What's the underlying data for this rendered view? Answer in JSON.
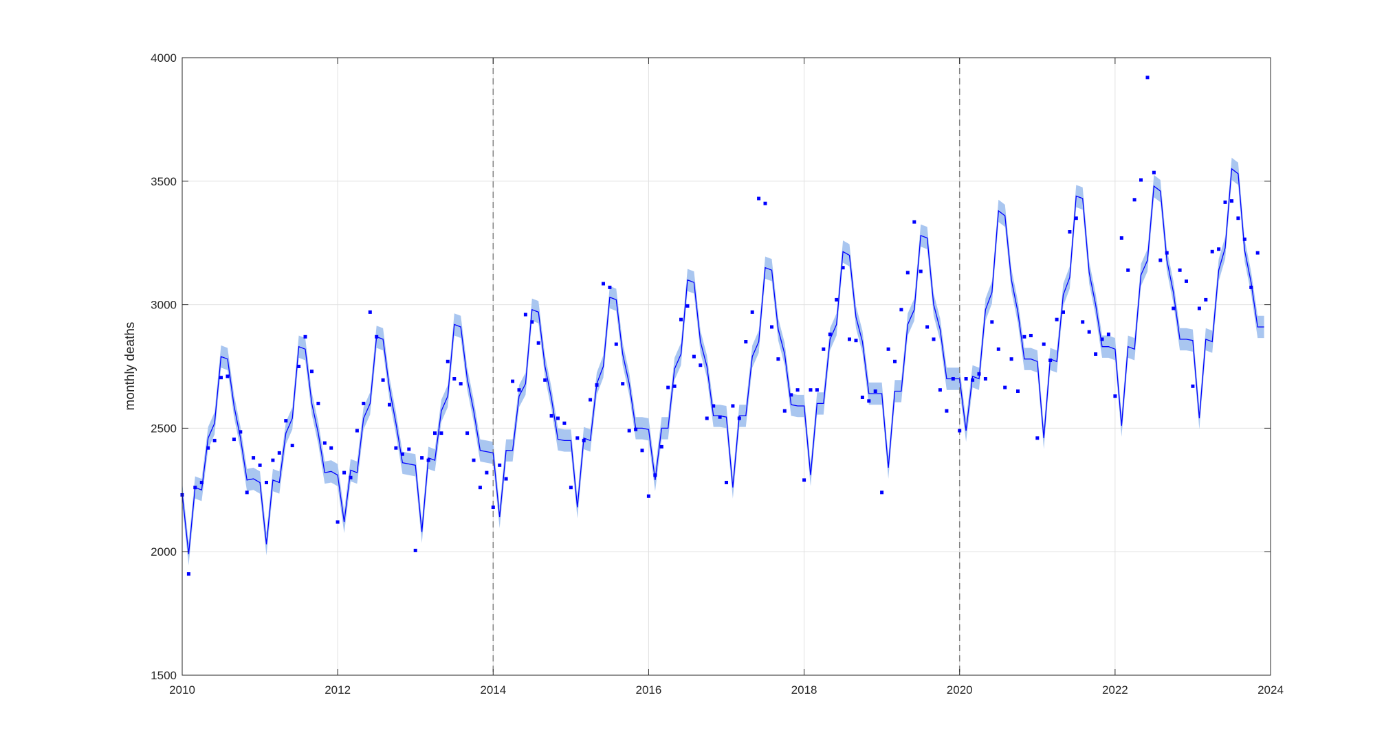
{
  "chart_data": {
    "type": "line",
    "title": "",
    "xlabel": "",
    "ylabel": "monthly deaths",
    "xlim": [
      2010,
      2024
    ],
    "ylim": [
      1500,
      4000
    ],
    "xticks": [
      2010,
      2012,
      2014,
      2016,
      2018,
      2020,
      2022,
      2024
    ],
    "xtick_labels": [
      "2010",
      "2012",
      "2014",
      "2016",
      "2018",
      "2020",
      "2022",
      "2024"
    ],
    "yticks": [
      1500,
      2000,
      2500,
      3000,
      3500,
      4000
    ],
    "ytick_labels": [
      "1500",
      "2000",
      "2500",
      "3000",
      "3500",
      "4000"
    ],
    "grid": true,
    "vertical_reference_lines": [
      2014,
      2020
    ],
    "colors": {
      "line": "#0000ff",
      "band": "#a9c6f0",
      "points": "#0000ff",
      "reference": "#808080",
      "grid": "#e0e0e0",
      "axis": "#262626"
    },
    "series": [
      {
        "kind": "observed-points",
        "monthly_from": 2010.0,
        "values": [
          2230,
          1910,
          2260,
          2280,
          2420,
          2450,
          2705,
          2710,
          2455,
          2485,
          2240,
          2380,
          2350,
          2280,
          2370,
          2400,
          2530,
          2430,
          2750,
          2870,
          2730,
          2600,
          2440,
          2420,
          2120,
          2320,
          2300,
          2490,
          2600,
          2970,
          2870,
          2695,
          2595,
          2420,
          2395,
          2415,
          2005,
          2380,
          2370,
          2480,
          2480,
          2770,
          2700,
          2680,
          2480,
          2370,
          2260,
          2320,
          2180,
          2350,
          2295,
          2690,
          2655,
          2960,
          2930,
          2845,
          2695,
          2550,
          2540,
          2520,
          2260,
          2460,
          2450,
          2615,
          2675,
          3085,
          3070,
          2840,
          2680,
          2490,
          2495,
          2410,
          2225,
          2310,
          2425,
          2665,
          2670,
          2940,
          2995,
          2790,
          2755,
          2540,
          2590,
          2545,
          2280,
          2590,
          2540,
          2850,
          2970,
          3430,
          3410,
          2910,
          2780,
          2570,
          2635,
          2655,
          2290,
          2655,
          2655,
          2820,
          2880,
          3020,
          3150,
          2860,
          2855,
          2625,
          2610,
          2650,
          2240,
          2820,
          2770,
          2980,
          3130,
          3335,
          3135,
          2910,
          2860,
          2655,
          2570,
          2700,
          2490,
          2700,
          2695,
          2720,
          2700,
          2930,
          2820,
          2665,
          2780,
          2650,
          2870,
          2875,
          2460,
          2840,
          2775,
          2940,
          2970,
          3295,
          3350,
          2930,
          2890,
          2800,
          2860,
          2880,
          2630,
          3270,
          3140,
          3425,
          3505,
          3920,
          3535,
          3180,
          3210,
          2985,
          3140,
          3095,
          2670,
          2985,
          3020,
          3215,
          3225,
          3415,
          3420,
          3350,
          3265,
          3070,
          3210
        ]
      },
      {
        "kind": "fitted-line",
        "monthly_from": 2010.0,
        "values": [
          2235,
          1990,
          2260,
          2250,
          2460,
          2520,
          2790,
          2780,
          2590,
          2460,
          2290,
          2295,
          2280,
          2030,
          2290,
          2280,
          2480,
          2540,
          2830,
          2820,
          2600,
          2480,
          2320,
          2325,
          2310,
          2120,
          2330,
          2320,
          2540,
          2600,
          2870,
          2860,
          2660,
          2520,
          2360,
          2355,
          2350,
          2080,
          2380,
          2370,
          2570,
          2630,
          2920,
          2910,
          2700,
          2570,
          2410,
          2405,
          2400,
          2140,
          2410,
          2410,
          2630,
          2680,
          2980,
          2970,
          2750,
          2620,
          2455,
          2450,
          2450,
          2180,
          2460,
          2450,
          2680,
          2750,
          3030,
          3020,
          2800,
          2680,
          2500,
          2500,
          2495,
          2290,
          2500,
          2500,
          2740,
          2800,
          3100,
          3090,
          2850,
          2750,
          2550,
          2550,
          2545,
          2260,
          2550,
          2550,
          2790,
          2850,
          3150,
          3140,
          2900,
          2800,
          2595,
          2590,
          2590,
          2310,
          2600,
          2600,
          2860,
          2920,
          3215,
          3200,
          2950,
          2850,
          2640,
          2640,
          2640,
          2340,
          2650,
          2650,
          2920,
          2980,
          3280,
          3270,
          3000,
          2900,
          2700,
          2700,
          2700,
          2490,
          2710,
          2700,
          2980,
          3050,
          3380,
          3360,
          3100,
          2970,
          2780,
          2780,
          2770,
          2460,
          2780,
          2770,
          3040,
          3110,
          3440,
          3430,
          3130,
          3000,
          2830,
          2830,
          2820,
          2510,
          2830,
          2820,
          3120,
          3180,
          3480,
          3460,
          3180,
          3050,
          2860,
          2860,
          2855,
          2540,
          2860,
          2850,
          3140,
          3230,
          3550,
          3530,
          3220,
          3090,
          2910,
          2910
        ]
      }
    ],
    "band_halfwidth": 45
  }
}
